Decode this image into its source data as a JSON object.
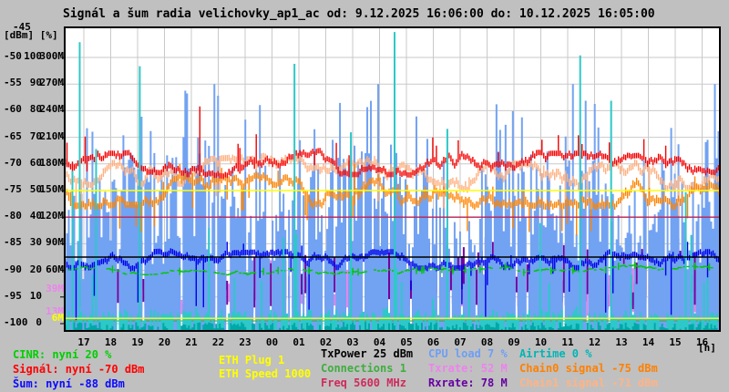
{
  "title": "Signál a šum radia velichovky_ap1_ac od: 9.12.2025 16:06:00 do: 10.12.2025 16:05:00",
  "axis": {
    "unit_label": "[dBm] [%]",
    "top_tick": "-45",
    "hours_label": "[h]",
    "hour_labels": [
      "17",
      "18",
      "19",
      "20",
      "21",
      "22",
      "23",
      "00",
      "01",
      "02",
      "03",
      "04",
      "05",
      "06",
      "07",
      "08",
      "09",
      "10",
      "11",
      "12",
      "13",
      "14",
      "15",
      "16"
    ],
    "left_ticks": [
      {
        "dbm": "-50",
        "pct": "100",
        "mbit": "300M"
      },
      {
        "dbm": "-55",
        "pct": "90",
        "mbit": "270M"
      },
      {
        "dbm": "-60",
        "pct": "80",
        "mbit": "240M"
      },
      {
        "dbm": "-65",
        "pct": "70",
        "mbit": "210M"
      },
      {
        "dbm": "-70",
        "pct": "60",
        "mbit": "180M"
      },
      {
        "dbm": "-75",
        "pct": "50",
        "mbit": "150M"
      },
      {
        "dbm": "-80",
        "pct": "40",
        "mbit": "120M"
      },
      {
        "dbm": "-85",
        "pct": "30",
        "mbit": "90M"
      },
      {
        "dbm": "-90",
        "pct": "20",
        "mbit": "60M"
      },
      {
        "dbm": "-95",
        "pct": "10",
        "mbit": ""
      },
      {
        "dbm": "-100",
        "pct": "0",
        "mbit": ""
      }
    ],
    "extra_ticks": [
      {
        "label": "39M",
        "mbit": 39,
        "color": "#EE82EE"
      },
      {
        "label": "13M",
        "mbit": 13,
        "color": "#EE82EE"
      },
      {
        "label": "6M",
        "mbit": 6,
        "color": "#FFFF00"
      }
    ]
  },
  "legend": {
    "columns": [
      {
        "items": [
          {
            "name": "cinr",
            "text": "CINR: nyní 20 %",
            "color": "#00CF00"
          },
          {
            "name": "signal",
            "text": "Signál: nyní -70 dBm",
            "color": "#FF0000"
          },
          {
            "name": "noise",
            "text": "Šum: nyní -88 dBm",
            "color": "#0A0AFF"
          }
        ]
      },
      {
        "items": [
          {
            "name": "eth-plug",
            "text": "ETH Plug 1",
            "color": "#FFFF00"
          },
          {
            "name": "eth-speed",
            "text": "ETH Speed 1000",
            "color": "#FFFF00"
          }
        ]
      },
      {
        "items": [
          {
            "name": "txpower",
            "text": "TxPower 25 dBm",
            "color": "#000000"
          },
          {
            "name": "connections",
            "text": "Connections 1",
            "color": "#3FAE3F"
          },
          {
            "name": "freq",
            "text": "Freq 5600 MHz",
            "color": "#CE2B5C"
          }
        ]
      },
      {
        "items": [
          {
            "name": "cpu-load",
            "text": "CPU load 7 %",
            "color": "#6E9EF5"
          },
          {
            "name": "txrate",
            "text": "Txrate: 52 M",
            "color": "#EE82EE"
          },
          {
            "name": "rxrate",
            "text": "Rxrate: 78 M",
            "color": "#6600A0"
          }
        ]
      },
      {
        "items": [
          {
            "name": "airtime",
            "text": "Airtime 0 %",
            "color": "#00B5B5"
          },
          {
            "name": "chain0-signal",
            "text": "Chain0 signal -75 dBm",
            "color": "#FF8000"
          },
          {
            "name": "chain1-signal",
            "text": "Chain1 signal -71 dBm",
            "color": "#FFB486"
          }
        ]
      }
    ]
  },
  "chart_data": {
    "type": "line",
    "title": "Signál a šum radia velichovky_ap1_ac od: 9.12.2025 16:06:00 do: 10.12.2025 16:05:00",
    "x_unit": "hours",
    "x_labels": [
      "17",
      "18",
      "19",
      "20",
      "21",
      "22",
      "23",
      "00",
      "01",
      "02",
      "03",
      "04",
      "05",
      "06",
      "07",
      "08",
      "09",
      "10",
      "11",
      "12",
      "13",
      "14",
      "15",
      "16"
    ],
    "y_axes": {
      "dbm_range": [
        -100,
        -45
      ],
      "pct_range": [
        0,
        105
      ],
      "mbit_range": [
        0,
        315
      ]
    },
    "grid": true,
    "now_values": {
      "cinr_pct": 20,
      "signal_dbm": -70,
      "noise_dbm": -88,
      "eth_plug": 1,
      "eth_speed": 1000,
      "txpower_dbm": 25,
      "connections": 1,
      "freq_mhz": 5600,
      "cpu_load_pct": 7,
      "txrate_m": 52,
      "rxrate_m": 78,
      "airtime_pct": 0,
      "chain0_dbm": -75,
      "chain1_dbm": -71
    },
    "series": [
      {
        "name": "txrate",
        "color": "#E882E8",
        "unit": "Mbit",
        "style": "bars-mbit",
        "approx_hourly": [
          40,
          55,
          35,
          60,
          45,
          50,
          38,
          52,
          42,
          58,
          36,
          48,
          55,
          40,
          62,
          45,
          38,
          50,
          44,
          56,
          48,
          40,
          52,
          45
        ],
        "render": {
          "prob": 0.5,
          "low": [
            4,
            26
          ],
          "high": [
            12,
            55
          ],
          "cap": 100
        }
      },
      {
        "name": "rxrate",
        "color": "#75009A",
        "unit": "Mbit",
        "style": "bars-mbit",
        "approx_hourly": [
          70,
          85,
          60,
          90,
          75,
          80,
          65,
          88,
          72,
          95,
          62,
          78,
          85,
          70,
          92,
          75,
          68,
          82,
          74,
          90,
          78,
          70,
          84,
          78
        ],
        "render": {
          "prob": 0.55,
          "low": [
            16,
            40
          ],
          "high": [
            15,
            60
          ],
          "cap": 135
        }
      },
      {
        "name": "cpu_load",
        "color": "#72A2F2",
        "unit": "%",
        "style": "spikes-pct",
        "approx_hourly": [
          14,
          12,
          16,
          10,
          13,
          18,
          11,
          9,
          15,
          12,
          17,
          10,
          13,
          16,
          11,
          14,
          9,
          12,
          15,
          10,
          13,
          16,
          12,
          10
        ],
        "render": {
          "gap_prob": 0.1,
          "base": [
            4,
            14
          ],
          "base_add": [
            10,
            40
          ],
          "med_prob": 0.25,
          "med": [
            10,
            25
          ],
          "tall_prob": 0.05,
          "tall": [
            40,
            85
          ],
          "cap": 90
        }
      },
      {
        "name": "chain1_signal",
        "color": "#FFB080",
        "unit": "dBm",
        "style": "band-dbm",
        "approx_hourly": [
          -71.2,
          -71.5,
          -71.0,
          -71.4,
          -71.2,
          -71.6,
          -71.3,
          -71.0,
          -71.5,
          -71.2,
          -71.4,
          -71.1,
          -71.6,
          -72.0,
          -72.3,
          -72.6,
          -72.4,
          -72.7,
          -72.3,
          -72.6,
          -72.2,
          -72.5,
          -72.0,
          -71.5
        ],
        "render": {
          "span": 1.6,
          "jitter": 1.0,
          "dn_prob": 0.04,
          "dn": [
            3,
            7
          ],
          "up_prob": 0.02,
          "up": [
            1,
            2
          ]
        }
      },
      {
        "name": "chain0_signal",
        "color": "#FF8400",
        "unit": "dBm",
        "style": "band-dbm",
        "approx_hourly": [
          -75.0,
          -75.3,
          -74.8,
          -75.2,
          -75.0,
          -75.5,
          -75.1,
          -74.9,
          -75.4,
          -75.0,
          -75.2,
          -74.8,
          -75.3,
          -75.0,
          -75.5,
          -75.2,
          -74.9,
          -75.3,
          -75.0,
          -75.4,
          -75.1,
          -75.5,
          -75.0,
          -75.2
        ],
        "render": {
          "span": 1.6,
          "jitter": 1.1,
          "dn_prob": 0.05,
          "dn": [
            3,
            6
          ],
          "up_prob": 0.04,
          "up": [
            2,
            3
          ],
          "big_prob": 0.004,
          "big": [
            5,
            6
          ]
        }
      },
      {
        "name": "signal",
        "color": "#F40000",
        "unit": "dBm",
        "style": "band-dbm",
        "approx_hourly": [
          -70,
          -70,
          -70,
          -69.5,
          -70,
          -70,
          -70.5,
          -70,
          -70,
          -69.5,
          -70,
          -70,
          -70,
          -70.5,
          -70,
          -70,
          -69.5,
          -70,
          -70,
          -70,
          -70.5,
          -70,
          -70,
          -70
        ],
        "render": {
          "span": 1.4,
          "jitter": 0.8,
          "dn_prob": 0.02,
          "dn": [
            1,
            3
          ],
          "up_prob": 0.06,
          "up": [
            2,
            5
          ],
          "big_prob": 0.005,
          "big": [
            9,
            12
          ]
        }
      },
      {
        "name": "noise",
        "color": "#0000E8",
        "unit": "dBm",
        "style": "band-dbm",
        "approx_hourly": [
          -88,
          -88,
          -88.3,
          -88,
          -87.8,
          -88,
          -88.2,
          -88,
          -88,
          -87.9,
          -88.1,
          -88,
          -88,
          -88.2,
          -88,
          -87.9,
          -88,
          -88.1,
          -88,
          -88,
          -88.2,
          -88,
          -88,
          -88
        ],
        "render": {
          "span": 1.4,
          "jitter": 0.6,
          "dn_prob": 0.07,
          "dn": [
            2,
            11
          ],
          "up_prob": 0.02,
          "up": [
            1,
            3
          ]
        }
      },
      {
        "name": "cinr",
        "color": "#00C800",
        "unit": "%",
        "style": "dash-pct",
        "approx_hourly": [
          20,
          20,
          19.5,
          20,
          20.5,
          20,
          19.8,
          20,
          20.2,
          20,
          19.6,
          20,
          20.3,
          20,
          19.7,
          20,
          20.1,
          20,
          19.5,
          20,
          20.4,
          20,
          20,
          20
        ],
        "render": {
          "jitter": 1.2,
          "on_prob": 0.6,
          "tick_prob": 0.06
        }
      },
      {
        "name": "airtime",
        "color": "#2EC8C8",
        "unit": "%",
        "style": "spikes-pct",
        "approx_hourly": [
          4,
          9,
          3,
          6,
          2,
          3,
          5,
          2,
          1,
          4,
          2,
          6,
          1,
          3,
          4,
          2,
          5,
          3,
          7,
          4,
          2,
          5,
          6,
          3
        ],
        "render": {
          "gap_prob": 0.3,
          "base": [
            0.5,
            4
          ],
          "base_add": [
            0,
            2
          ],
          "med_prob": 0.07,
          "med": [
            8,
            38
          ],
          "tall_prob": 0.03,
          "tall": [
            45,
            112
          ],
          "cap": 112
        }
      },
      {
        "name": "connections_line",
        "color": "#3FAE3F",
        "unit": "%",
        "style": "hline-pct",
        "value": 1
      },
      {
        "name": "freq_line",
        "color": "#BB2255",
        "unit": "dBm",
        "style": "hline-dbm",
        "value": -80
      },
      {
        "name": "txpower_line",
        "color": "#000000",
        "unit": "%",
        "style": "hline-pct",
        "value": 25
      },
      {
        "name": "rate_marker_150M",
        "color": "#FFFF00",
        "unit": "Mbit",
        "style": "hline-mbit",
        "value": 150
      },
      {
        "name": "rate_marker_6M",
        "color": "#FFFF00",
        "unit": "Mbit",
        "style": "hline-mbit",
        "value": 6
      }
    ]
  }
}
